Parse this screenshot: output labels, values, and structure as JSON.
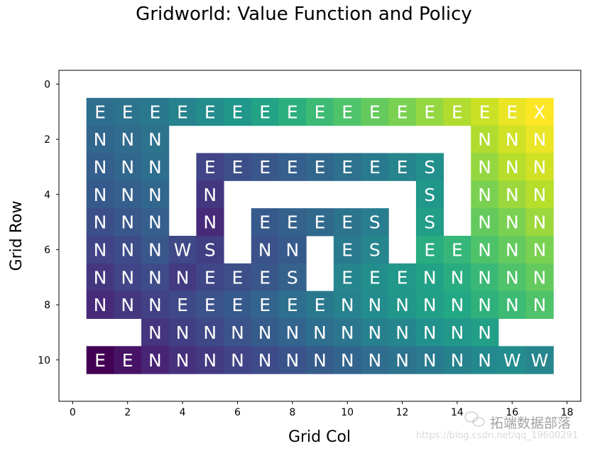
{
  "chart_data": {
    "type": "heatmap",
    "title": "Gridworld: Value Function and Policy",
    "xlabel": "Grid Col",
    "ylabel": "Grid Row",
    "xlim": [
      -0.5,
      18.5
    ],
    "ylim": [
      11.5,
      -0.5
    ],
    "xticks": [
      0,
      2,
      4,
      6,
      8,
      10,
      12,
      14,
      16,
      18
    ],
    "yticks": [
      0,
      2,
      4,
      6,
      8,
      10
    ],
    "colormap": "viridis",
    "value_note": "relative value, 0 = lowest, 1 = highest",
    "first_col": 1,
    "first_row": 1,
    "policy": [
      [
        "E",
        "E",
        "E",
        "E",
        "E",
        "E",
        "E",
        "E",
        "E",
        "E",
        "E",
        "E",
        "E",
        "E",
        "E",
        "E",
        "X"
      ],
      [
        "N",
        "N",
        "N",
        "",
        "",
        "",
        "",
        "",
        "",
        "",
        "",
        "",
        "",
        "",
        "N",
        "N",
        "N"
      ],
      [
        "N",
        "N",
        "N",
        "",
        "E",
        "E",
        "E",
        "E",
        "E",
        "E",
        "E",
        "E",
        "S",
        "",
        "N",
        "N",
        "N"
      ],
      [
        "N",
        "N",
        "N",
        "",
        "N",
        "",
        "",
        "",
        "",
        "",
        "",
        "",
        "S",
        "",
        "N",
        "N",
        "N"
      ],
      [
        "N",
        "N",
        "N",
        "",
        "N",
        "",
        "E",
        "E",
        "E",
        "E",
        "S",
        "",
        "S",
        "",
        "N",
        "N",
        "N"
      ],
      [
        "N",
        "N",
        "N",
        "W",
        "S",
        "",
        "N",
        "N",
        "",
        "E",
        "S",
        "",
        "E",
        "E",
        "N",
        "N",
        "N"
      ],
      [
        "N",
        "N",
        "N",
        "N",
        "E",
        "E",
        "E",
        "S",
        "",
        "E",
        "E",
        "E",
        "N",
        "N",
        "N",
        "N",
        "N"
      ],
      [
        "N",
        "N",
        "N",
        "E",
        "E",
        "E",
        "E",
        "E",
        "E",
        "N",
        "N",
        "N",
        "N",
        "N",
        "N",
        "N",
        "N"
      ],
      [
        "",
        "",
        "N",
        "N",
        "N",
        "N",
        "N",
        "N",
        "N",
        "N",
        "N",
        "N",
        "N",
        "N",
        "N",
        "",
        ""
      ],
      [
        "E",
        "E",
        "N",
        "N",
        "N",
        "N",
        "N",
        "N",
        "N",
        "N",
        "N",
        "N",
        "N",
        "N",
        "N",
        "W",
        "W"
      ]
    ],
    "values": [
      [
        0.36,
        0.38,
        0.4,
        0.44,
        0.48,
        0.52,
        0.58,
        0.63,
        0.68,
        0.72,
        0.76,
        0.8,
        0.84,
        0.88,
        0.92,
        0.97,
        1.0
      ],
      [
        0.33,
        0.35,
        0.38,
        null,
        null,
        null,
        null,
        null,
        null,
        null,
        null,
        null,
        null,
        null,
        0.88,
        0.93,
        0.97
      ],
      [
        0.3,
        0.33,
        0.36,
        null,
        0.2,
        0.24,
        0.27,
        0.3,
        0.33,
        0.37,
        0.41,
        0.45,
        0.49,
        null,
        0.84,
        0.89,
        0.93
      ],
      [
        0.28,
        0.3,
        0.33,
        null,
        0.16,
        null,
        null,
        null,
        null,
        null,
        null,
        null,
        0.52,
        null,
        0.8,
        0.85,
        0.89
      ],
      [
        0.24,
        0.27,
        0.3,
        null,
        0.12,
        null,
        0.28,
        0.31,
        0.34,
        0.38,
        0.42,
        null,
        0.55,
        null,
        0.76,
        0.8,
        0.85
      ],
      [
        0.2,
        0.23,
        0.27,
        0.22,
        0.18,
        null,
        0.25,
        0.28,
        null,
        0.41,
        0.45,
        null,
        0.62,
        0.66,
        0.72,
        0.76,
        0.8
      ],
      [
        0.16,
        0.2,
        0.23,
        0.17,
        0.21,
        0.24,
        0.27,
        0.31,
        null,
        0.45,
        0.49,
        0.53,
        0.57,
        0.62,
        0.67,
        0.72,
        0.76
      ],
      [
        0.12,
        0.16,
        0.19,
        0.22,
        0.25,
        0.28,
        0.32,
        0.36,
        0.4,
        0.44,
        0.48,
        0.52,
        0.56,
        0.6,
        0.64,
        0.68,
        0.72
      ],
      [
        null,
        null,
        0.15,
        0.18,
        0.22,
        0.25,
        0.29,
        0.32,
        0.36,
        0.39,
        0.43,
        0.46,
        0.5,
        0.53,
        0.56,
        null,
        null
      ],
      [
        0.0,
        0.05,
        0.1,
        0.14,
        0.17,
        0.2,
        0.23,
        0.26,
        0.29,
        0.32,
        0.35,
        0.38,
        0.41,
        0.44,
        0.47,
        0.48,
        0.45
      ]
    ]
  },
  "watermark": {
    "brand": "拓端数据部落",
    "url": "https://blog.csdn.net/qq_19600291"
  }
}
